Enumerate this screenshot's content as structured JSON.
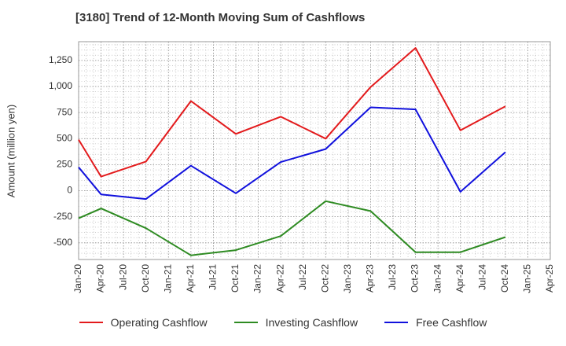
{
  "chart_data": {
    "type": "line",
    "title": "[3180]  Trend of 12-Month Moving Sum of Cashflows",
    "ylabel": "Amount (million yen)",
    "xlabel": "",
    "categories": [
      "Jan-20",
      "Apr-20",
      "Jul-20",
      "Oct-20",
      "Jan-21",
      "Apr-21",
      "Jul-21",
      "Oct-21",
      "Jan-22",
      "Apr-22",
      "Jul-22",
      "Oct-22",
      "Jan-23",
      "Apr-23",
      "Jul-23",
      "Oct-23",
      "Jan-24",
      "Apr-24",
      "Jul-24",
      "Oct-24",
      "Jan-25",
      "Apr-25"
    ],
    "yticks": [
      -500,
      -250,
      0,
      250,
      500,
      750,
      1000,
      1250
    ],
    "ytick_labels": [
      "-500",
      "-250",
      "0",
      "250",
      "500",
      "750",
      "1,000",
      "1,250"
    ],
    "ylim": [
      -660,
      1430
    ],
    "grid": true,
    "legend_position": "bottom",
    "series": [
      {
        "name": "Operating Cashflow",
        "color": "#e31a1c",
        "values": [
          490,
          135,
          null,
          280,
          null,
          860,
          null,
          545,
          null,
          710,
          null,
          500,
          null,
          995,
          null,
          1370,
          null,
          580,
          null,
          810,
          null,
          null
        ]
      },
      {
        "name": "Investing Cashflow",
        "color": "#2e8b22",
        "values": [
          -265,
          -170,
          null,
          -360,
          null,
          -620,
          null,
          -570,
          null,
          -435,
          null,
          -100,
          null,
          -195,
          null,
          -590,
          null,
          -590,
          null,
          -445,
          null,
          null
        ]
      },
      {
        "name": "Free Cashflow",
        "color": "#1111dd",
        "values": [
          225,
          -35,
          null,
          -80,
          null,
          240,
          null,
          -25,
          null,
          275,
          null,
          400,
          null,
          800,
          null,
          780,
          null,
          -10,
          null,
          370,
          null,
          null
        ]
      }
    ]
  }
}
